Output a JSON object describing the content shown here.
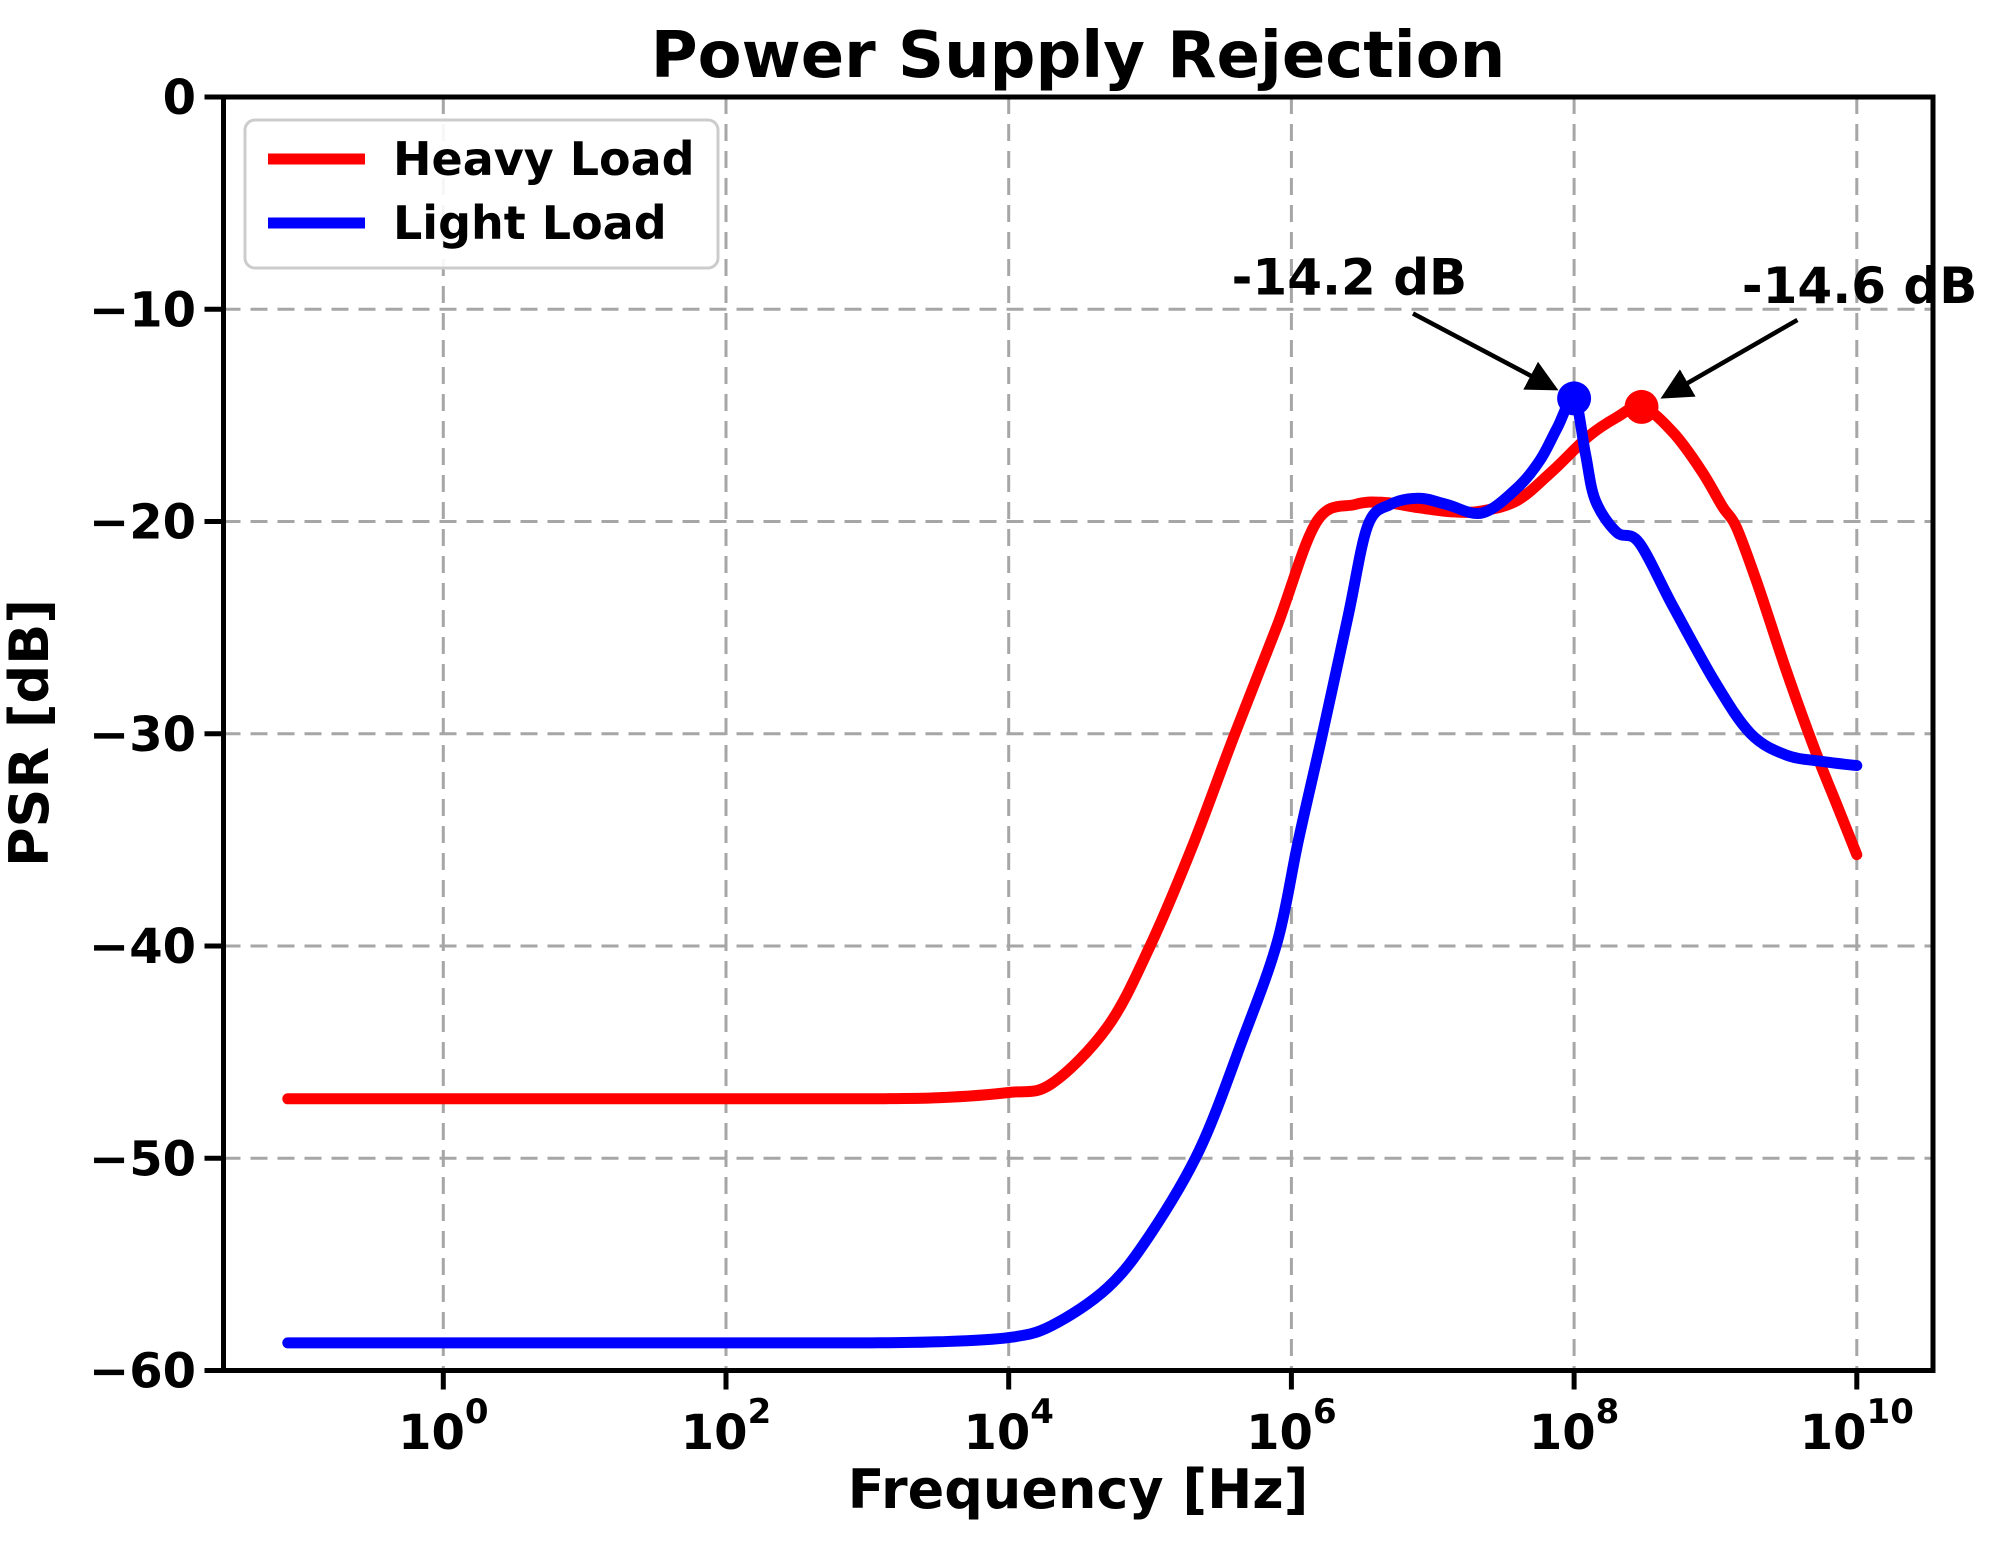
{
  "figure": {
    "background": "#ffffff"
  },
  "chart_data": {
    "type": "line",
    "title": "Power Supply Rejection",
    "xlabel": "Frequency [Hz]",
    "ylabel": "PSR [dB]",
    "x_scale": "log10",
    "xlim_log10": [
      -1.555,
      10.54
    ],
    "ylim": [
      -60,
      0
    ],
    "grid": {
      "visible": true,
      "style": "dashed",
      "color": "#a6a6a6"
    },
    "axis_color": "#000000",
    "x_ticks": [
      {
        "log10": 0,
        "label_base": "10",
        "label_exp": "0"
      },
      {
        "log10": 2,
        "label_base": "10",
        "label_exp": "2"
      },
      {
        "log10": 4,
        "label_base": "10",
        "label_exp": "4"
      },
      {
        "log10": 6,
        "label_base": "10",
        "label_exp": "6"
      },
      {
        "log10": 8,
        "label_base": "10",
        "label_exp": "8"
      },
      {
        "log10": 10,
        "label_base": "10",
        "label_exp": "10"
      }
    ],
    "y_ticks": [
      {
        "value": 0,
        "label": "0"
      },
      {
        "value": -10,
        "label": "−10"
      },
      {
        "value": -20,
        "label": "−20"
      },
      {
        "value": -30,
        "label": "−30"
      },
      {
        "value": -40,
        "label": "−40"
      },
      {
        "value": -50,
        "label": "−50"
      },
      {
        "value": -60,
        "label": "−60"
      }
    ],
    "legend": {
      "position": "upper-left",
      "entries": [
        "Heavy Load",
        "Light Load"
      ]
    },
    "series": [
      {
        "name": "Heavy Load",
        "color": "#ff0000",
        "points_log10f_db": [
          [
            -1.1,
            -47.2
          ],
          [
            -0.5,
            -47.2
          ],
          [
            0,
            -47.2
          ],
          [
            0.5,
            -47.2
          ],
          [
            1,
            -47.2
          ],
          [
            1.5,
            -47.2
          ],
          [
            2,
            -47.2
          ],
          [
            2.5,
            -47.2
          ],
          [
            3,
            -47.2
          ],
          [
            3.5,
            -47.15
          ],
          [
            4,
            -46.9
          ],
          [
            4.3,
            -46.5
          ],
          [
            4.7,
            -43.8
          ],
          [
            5,
            -40
          ],
          [
            5.3,
            -35.3
          ],
          [
            5.6,
            -30
          ],
          [
            5.9,
            -24.9
          ],
          [
            6.18,
            -20
          ],
          [
            6.45,
            -19.2
          ],
          [
            6.65,
            -19.1
          ],
          [
            6.9,
            -19.35
          ],
          [
            7.15,
            -19.55
          ],
          [
            7.35,
            -19.5
          ],
          [
            7.6,
            -19
          ],
          [
            7.85,
            -17.6
          ],
          [
            8.1,
            -16
          ],
          [
            8.3,
            -15.1
          ],
          [
            8.48,
            -14.6
          ],
          [
            8.7,
            -15.8
          ],
          [
            8.9,
            -17.6
          ],
          [
            9.05,
            -19.3
          ],
          [
            9.15,
            -20.3
          ],
          [
            9.3,
            -23
          ],
          [
            9.5,
            -27
          ],
          [
            9.7,
            -30.7
          ],
          [
            9.85,
            -33.2
          ],
          [
            10,
            -35.7
          ]
        ]
      },
      {
        "name": "Light Load",
        "color": "#0000ff",
        "points_log10f_db": [
          [
            -1.1,
            -58.7
          ],
          [
            -0.5,
            -58.7
          ],
          [
            0,
            -58.7
          ],
          [
            0.5,
            -58.7
          ],
          [
            1,
            -58.7
          ],
          [
            1.5,
            -58.7
          ],
          [
            2,
            -58.7
          ],
          [
            2.5,
            -58.7
          ],
          [
            3,
            -58.7
          ],
          [
            3.5,
            -58.65
          ],
          [
            4,
            -58.45
          ],
          [
            4.3,
            -57.9
          ],
          [
            4.7,
            -56.1
          ],
          [
            5,
            -53.6
          ],
          [
            5.35,
            -49.6
          ],
          [
            5.65,
            -44.5
          ],
          [
            5.9,
            -39.8
          ],
          [
            6.05,
            -35
          ],
          [
            6.22,
            -30
          ],
          [
            6.4,
            -24.5
          ],
          [
            6.54,
            -20.2
          ],
          [
            6.7,
            -19.2
          ],
          [
            6.9,
            -18.9
          ],
          [
            7.1,
            -19.2
          ],
          [
            7.35,
            -19.6
          ],
          [
            7.6,
            -18.4
          ],
          [
            7.76,
            -17.1
          ],
          [
            7.88,
            -15.6
          ],
          [
            8,
            -14.2
          ],
          [
            8.08,
            -16.8
          ],
          [
            8.15,
            -19
          ],
          [
            8.3,
            -20.5
          ],
          [
            8.46,
            -21
          ],
          [
            8.7,
            -24
          ],
          [
            9,
            -27.6
          ],
          [
            9.25,
            -30
          ],
          [
            9.5,
            -31
          ],
          [
            9.75,
            -31.3
          ],
          [
            10,
            -31.5
          ]
        ]
      }
    ],
    "peak_markers": [
      {
        "series": "Light Load",
        "color": "#0000ff",
        "log10_f": 8.0,
        "psr_db": -14.2
      },
      {
        "series": "Heavy Load",
        "color": "#ff0000",
        "log10_f": 8.477,
        "psr_db": -14.6
      }
    ],
    "annotations": [
      {
        "text": "-14.2 dB",
        "text_center": [
          6.41,
          -8.5
        ],
        "arrow_from": [
          6.86,
          -10.2
        ],
        "arrow_to": [
          7.86,
          -13.72
        ]
      },
      {
        "text": "-14.6 dB",
        "text_center": [
          10.02,
          -8.9
        ],
        "arrow_from": [
          9.58,
          -10.5
        ],
        "arrow_to": [
          8.64,
          -14.1
        ]
      }
    ]
  }
}
